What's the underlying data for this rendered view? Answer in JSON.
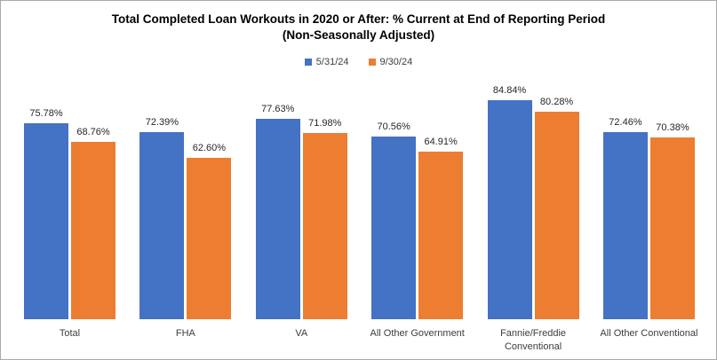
{
  "title": {
    "line1": "Total Completed Loan Workouts  in 2020 or After:  % Current at End of Reporting Period",
    "line2": "(Non-Seasonally Adjusted)"
  },
  "colors": {
    "series_blue": "#4472C4",
    "series_orange": "#ED7D31",
    "title_text": "#000000",
    "label_text": "#262626",
    "axis_text": "#3d3d3d",
    "frame_border": "#a9a9a9",
    "background": "#ffffff"
  },
  "chart_data": {
    "type": "bar",
    "title": "Total Completed Loan Workouts  in 2020 or After:  % Current at End of Reporting Period",
    "subtitle": "(Non-Seasonally Adjusted)",
    "categories": [
      "Total",
      "FHA",
      "VA",
      "All Other Government",
      "Fannie/Freddie Conventional",
      "All Other Conventional"
    ],
    "series": [
      {
        "name": "5/31/24",
        "color": "#4472C4",
        "values": [
          75.78,
          72.39,
          77.63,
          70.56,
          84.84,
          72.46
        ],
        "labels": [
          "75.78%",
          "72.39%",
          "77.63%",
          "70.56%",
          "84.84%",
          "72.46%"
        ]
      },
      {
        "name": "9/30/24",
        "color": "#ED7D31",
        "values": [
          68.76,
          62.6,
          71.98,
          64.91,
          80.28,
          70.38
        ],
        "labels": [
          "68.76%",
          "62.60%",
          "71.98%",
          "64.91%",
          "80.28%",
          "70.38%"
        ]
      }
    ],
    "ylabel": "",
    "xlabel": "",
    "ylim": [
      0,
      90
    ],
    "grid": false,
    "y_axis_shown": false,
    "value_labels_shown": true,
    "legend_position": "top-center"
  }
}
